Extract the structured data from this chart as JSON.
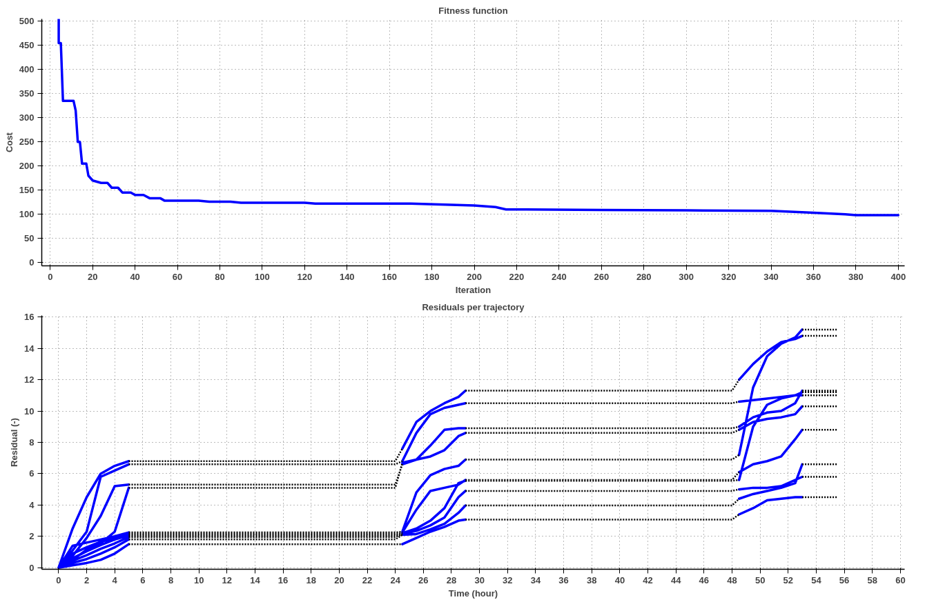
{
  "chart_data": [
    {
      "type": "line",
      "title": "Fitness function",
      "xlabel": "Iteration",
      "ylabel": "Cost",
      "color": "#0000ff",
      "grid": true,
      "xlim": [
        -4,
        403
      ],
      "ylim": [
        -7,
        505
      ],
      "xticks": [
        0,
        20,
        40,
        60,
        80,
        100,
        120,
        140,
        160,
        180,
        200,
        220,
        240,
        260,
        280,
        300,
        320,
        340,
        360,
        380,
        400
      ],
      "yticks": [
        0,
        50,
        100,
        150,
        200,
        250,
        300,
        350,
        400,
        450,
        500
      ],
      "x": [
        4,
        4,
        5,
        6,
        11,
        12,
        13,
        14,
        15,
        17,
        18,
        20,
        24,
        27,
        29,
        32,
        34,
        38,
        40,
        44,
        47,
        52,
        54,
        70,
        75,
        85,
        90,
        120,
        125,
        170,
        200,
        210,
        215,
        260,
        300,
        340,
        360,
        375,
        380,
        400
      ],
      "values": [
        505,
        455,
        455,
        335,
        335,
        315,
        250,
        250,
        205,
        205,
        180,
        170,
        165,
        165,
        155,
        155,
        145,
        145,
        140,
        140,
        133,
        133,
        128,
        128,
        126,
        126,
        124,
        124,
        122,
        122,
        118,
        115,
        110,
        109,
        108,
        107,
        103,
        100,
        98,
        98
      ]
    },
    {
      "type": "line",
      "title": "Residuals per trajectory",
      "xlabel": "Time (hour)",
      "ylabel": "Residual (-)",
      "grid": true,
      "xlim": [
        -1.2,
        60.3
      ],
      "ylim": [
        -0.1,
        16.1
      ],
      "xticks": [
        0,
        2,
        4,
        6,
        8,
        10,
        12,
        14,
        16,
        18,
        20,
        22,
        24,
        26,
        28,
        30,
        32,
        34,
        36,
        38,
        40,
        42,
        44,
        46,
        48,
        50,
        52,
        54,
        56,
        58,
        60
      ],
      "yticks": [
        0,
        2,
        4,
        6,
        8,
        10,
        12,
        14,
        16
      ],
      "series": [
        {
          "color": "#0000ff",
          "x": [
            0,
            1,
            2,
            3,
            4,
            5,
            null,
            24.5,
            25.5,
            26.5,
            27.5,
            28.5,
            29,
            null,
            48.5,
            49.5,
            50.5,
            51.5,
            52.5,
            53,
            null,
            0,
            1,
            2,
            3,
            4,
            5,
            null,
            24.5,
            25.5,
            26.5,
            27.5,
            28.5,
            29,
            null,
            48.5,
            49.5,
            50.5,
            51.5,
            52.5,
            53,
            null,
            0,
            1,
            2,
            3,
            4,
            5,
            null,
            24.5,
            25.5,
            26.5,
            27.5,
            28.5,
            29,
            null,
            48.5,
            49.5,
            50.5,
            51.5,
            52.5,
            53,
            null,
            0,
            1,
            2,
            3,
            4,
            5,
            null,
            24.5,
            25.5,
            26.5,
            27.5,
            28.5,
            29,
            null,
            48.5,
            49.5,
            50.5,
            51.5,
            52.5,
            53,
            null,
            0,
            1,
            2,
            3,
            4,
            5,
            null,
            24.5,
            25.5,
            26.5,
            27.5,
            28.5,
            29,
            null,
            48.5,
            49.5,
            50.5,
            51.5,
            52.5,
            53,
            null,
            0,
            1,
            2,
            3,
            4,
            5,
            null,
            24.5,
            25.5,
            26.5,
            27.5,
            28.5,
            29,
            null,
            48.5,
            49.5,
            50.5,
            51.5,
            52.5,
            53,
            null,
            0,
            1,
            2,
            3,
            4,
            5,
            null,
            24.5,
            25.5,
            26.5,
            27.5,
            28.5,
            29,
            null,
            48.5,
            49.5,
            50.5,
            51.5,
            52.5,
            53,
            null,
            0,
            1,
            2,
            3,
            4,
            5,
            null,
            24.5,
            25.5,
            26.5,
            27.5,
            28.5,
            29,
            null,
            48.5,
            49.5,
            50.5,
            51.5,
            52.5,
            53,
            null,
            0,
            1,
            2,
            3,
            4,
            5,
            null,
            24.5,
            25.5,
            26.5,
            27.5,
            28.5,
            29,
            null,
            48.5,
            49.5,
            50.5,
            51.5,
            52.5,
            53,
            null,
            0,
            1,
            2,
            3,
            4,
            5,
            null,
            24.5,
            25.5,
            26.5,
            27.5,
            28.5,
            29,
            null,
            48.5,
            49.5,
            50.5,
            51.5,
            52.5,
            53
          ],
          "values": [
            0,
            2.5,
            4.5,
            6.0,
            6.5,
            6.8,
            null,
            7.6,
            9.3,
            10.0,
            10.5,
            10.9,
            11.3,
            null,
            12.0,
            13.0,
            13.8,
            14.4,
            14.6,
            14.8,
            null,
            0,
            1.1,
            2.3,
            5.8,
            6.2,
            6.6,
            null,
            6.8,
            8.6,
            9.8,
            10.2,
            10.4,
            10.5,
            null,
            10.6,
            10.7,
            10.8,
            10.9,
            11.0,
            11.2,
            null,
            0,
            0.75,
            1.9,
            3.3,
            5.2,
            5.3,
            null,
            6.6,
            6.9,
            7.8,
            8.8,
            8.9,
            8.9,
            null,
            9.0,
            9.6,
            9.9,
            10.0,
            10.5,
            11.3,
            null,
            0,
            0.5,
            1.15,
            1.55,
            2.3,
            5.1,
            null,
            6.7,
            6.9,
            7.1,
            7.5,
            8.4,
            8.6,
            null,
            8.8,
            9.3,
            9.5,
            9.6,
            9.8,
            10.3,
            null,
            0,
            1.4,
            1.6,
            1.8,
            2.0,
            2.25,
            null,
            2.3,
            4.8,
            5.9,
            6.3,
            6.5,
            6.9,
            null,
            7.2,
            11.5,
            13.5,
            14.3,
            14.7,
            15.2,
            null,
            0,
            0.9,
            1.3,
            1.65,
            1.9,
            2.15,
            null,
            2.25,
            3.7,
            4.9,
            5.1,
            5.3,
            5.6,
            null,
            6.1,
            6.6,
            6.8,
            7.1,
            8.2,
            8.8,
            null,
            0,
            0.6,
            1.05,
            1.45,
            1.8,
            2.05,
            null,
            2.2,
            2.5,
            3.0,
            3.8,
            5.4,
            5.55,
            null,
            5.6,
            9.0,
            10.4,
            10.8,
            11.0,
            11.0,
            null,
            0,
            0.45,
            0.8,
            1.2,
            1.55,
            1.95,
            null,
            2.15,
            2.35,
            2.7,
            3.2,
            4.5,
            4.9,
            null,
            5.0,
            5.1,
            5.1,
            5.2,
            5.6,
            5.8,
            null,
            0,
            0.3,
            0.55,
            0.9,
            1.3,
            1.8,
            null,
            2.1,
            2.15,
            2.45,
            2.8,
            3.5,
            3.97,
            null,
            4.4,
            4.7,
            4.9,
            5.1,
            5.4,
            6.6,
            null,
            0,
            0.15,
            0.3,
            0.5,
            0.9,
            1.5,
            null,
            1.5,
            1.9,
            2.3,
            2.6,
            3.0,
            3.07,
            null,
            3.4,
            3.8,
            4.3,
            4.4,
            4.5,
            4.5
          ]
        },
        {
          "color": "#000000",
          "line_style": "dotted",
          "x": [
            5,
            24,
            24.5,
            null,
            29,
            48,
            48.5,
            null,
            5,
            24,
            24.5,
            null,
            29,
            48,
            48.5,
            null,
            5,
            24,
            24.5,
            null,
            29,
            48,
            48.5,
            null,
            5,
            24,
            24.5,
            null,
            29,
            48,
            48.5,
            null,
            5,
            24,
            24.5,
            null,
            29,
            48,
            48.5,
            null,
            5,
            24,
            24.5,
            null,
            29,
            48,
            48.5,
            null,
            5,
            24,
            24.5,
            null,
            29,
            48,
            48.5,
            null,
            5,
            24,
            24.5,
            null,
            29,
            48,
            48.5,
            null,
            5,
            24,
            24.5,
            null,
            29,
            48,
            48.5,
            null,
            5,
            24,
            24.5,
            null,
            29,
            48,
            48.5
          ],
          "values": [
            6.8,
            6.8,
            7.6,
            null,
            11.3,
            11.3,
            12.0,
            null,
            6.6,
            6.6,
            6.8,
            null,
            10.5,
            10.5,
            10.6,
            null,
            5.3,
            5.3,
            6.6,
            null,
            8.9,
            8.9,
            9.0,
            null,
            5.1,
            5.1,
            6.7,
            null,
            8.6,
            8.6,
            8.8,
            null,
            2.25,
            2.25,
            2.3,
            null,
            6.9,
            6.9,
            7.2,
            null,
            2.15,
            2.15,
            2.25,
            null,
            5.6,
            5.6,
            6.1,
            null,
            2.05,
            2.05,
            2.2,
            null,
            5.55,
            5.55,
            5.6,
            null,
            1.95,
            1.95,
            2.15,
            null,
            4.9,
            4.9,
            5.0,
            null,
            1.8,
            1.8,
            2.1,
            null,
            3.97,
            3.97,
            4.4,
            null,
            1.5,
            1.5,
            1.5,
            null,
            3.07,
            3.07,
            3.4
          ]
        },
        {
          "color": "#000000",
          "line_style": "dotted",
          "x": [
            53,
            54.25,
            55.5,
            null,
            53,
            54.25,
            55.5,
            null,
            53,
            54.25,
            55.5,
            null,
            53,
            54.25,
            55.5,
            null,
            53,
            54.25,
            55.5,
            null,
            53,
            54.25,
            55.5,
            null,
            53,
            54.25,
            55.5,
            null,
            53,
            54.25,
            55.5,
            null,
            53,
            54.25,
            55.5,
            null,
            53,
            54.25,
            55.5
          ],
          "values": [
            14.8,
            14.8,
            14.8,
            null,
            11.2,
            11.2,
            11.2,
            null,
            11.3,
            11.3,
            11.3,
            null,
            10.3,
            10.3,
            10.3,
            null,
            15.2,
            15.2,
            15.2,
            null,
            8.8,
            8.8,
            8.8,
            null,
            11.0,
            11.0,
            11.0,
            null,
            5.8,
            5.8,
            5.8,
            null,
            6.6,
            6.6,
            6.6,
            null,
            4.5,
            4.5,
            4.5
          ]
        }
      ]
    }
  ]
}
